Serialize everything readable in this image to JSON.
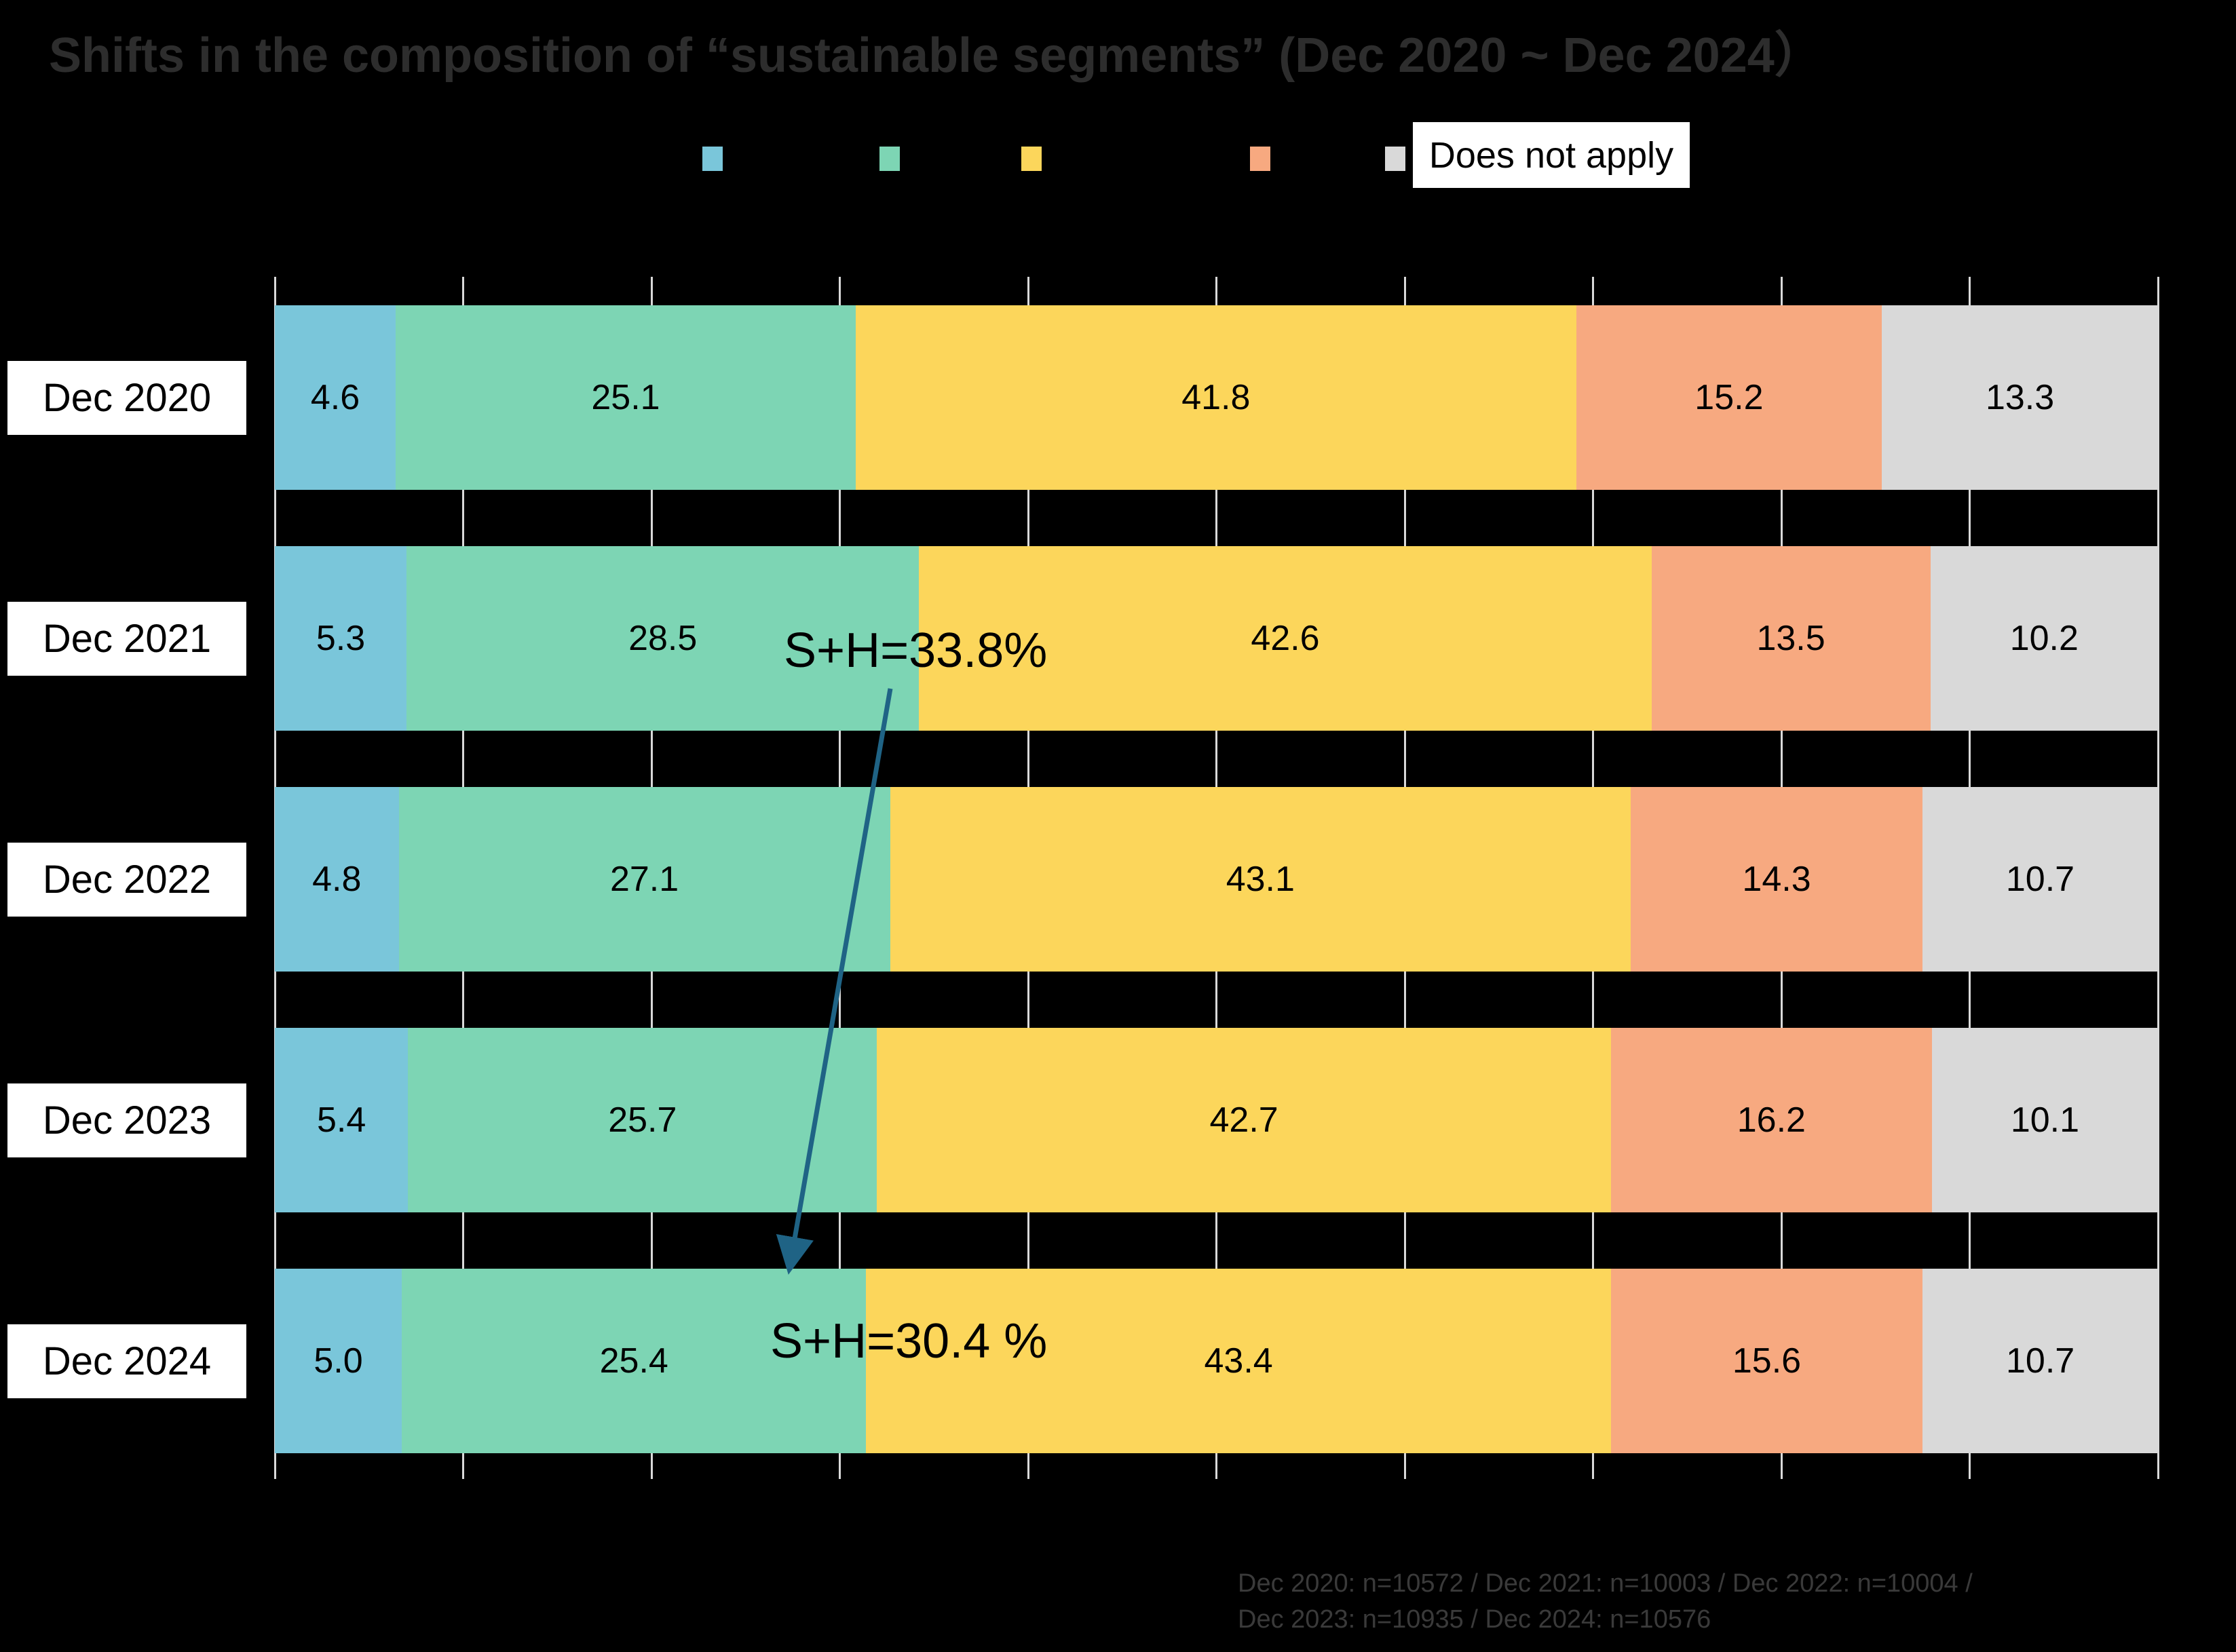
{
  "title": "Shifts in the composition of “sustainable segments” (Dec 2020 ~ Dec 2024）",
  "legend": {
    "items": [
      {
        "name": "series-1",
        "color": "#7AC6DA",
        "label": ""
      },
      {
        "name": "series-2",
        "color": "#7DD5B4",
        "label": ""
      },
      {
        "name": "series-3",
        "color": "#FCD65B",
        "label": ""
      },
      {
        "name": "series-4",
        "color": "#F7A980",
        "label": ""
      },
      {
        "name": "series-5",
        "color": "#D9D9D9",
        "label": "Does not apply"
      }
    ]
  },
  "chart_data": {
    "type": "bar",
    "subtype": "horizontal-stacked-100-percent",
    "unit": "percent",
    "xlim": [
      0,
      100
    ],
    "gridline_interval": 10,
    "grid": "vertical white ticks on black background",
    "legend_position": "top",
    "categories": [
      "Dec 2020",
      "Dec 2021",
      "Dec 2022",
      "Dec 2023",
      "Dec 2024"
    ],
    "series": [
      {
        "name": "segment-1-blue",
        "color": "#7AC6DA",
        "values": [
          4.6,
          5.3,
          4.8,
          5.4,
          5.0
        ]
      },
      {
        "name": "segment-2-teal",
        "color": "#7DD5B4",
        "values": [
          25.1,
          28.5,
          27.1,
          25.7,
          25.4
        ]
      },
      {
        "name": "segment-3-yellow",
        "color": "#FCD65B",
        "values": [
          41.8,
          42.6,
          43.1,
          42.7,
          43.4
        ]
      },
      {
        "name": "segment-4-orange",
        "color": "#F7A980",
        "values": [
          15.2,
          13.5,
          14.3,
          16.2,
          15.6
        ]
      },
      {
        "name": "segment-5-gray",
        "color": "#D9D9D9",
        "legend_label": "Does not apply",
        "values": [
          13.3,
          10.2,
          10.7,
          10.1,
          10.7
        ]
      }
    ],
    "annotations": [
      {
        "id": "sh2021",
        "text": "S+H=33.8%",
        "target_row": "Dec 2021"
      },
      {
        "id": "sh2024",
        "text": "S+H=30.4 %",
        "target_row": "Dec 2024"
      }
    ],
    "arrow": {
      "from_row": "Dec 2021",
      "to_row": "Dec 2024",
      "color": "#1f6385"
    }
  },
  "footnote": {
    "lines": [
      "Dec 2020: n=10572 / Dec 2021: n=10003 / Dec 2022: n=10004 /",
      "Dec 2023: n=10935 / Dec 2024: n=10576"
    ],
    "samples": {
      "Dec 2020": 10572,
      "Dec 2021": 10003,
      "Dec 2022": 10004,
      "Dec 2023": 10935,
      "Dec 2024": 10576
    }
  }
}
